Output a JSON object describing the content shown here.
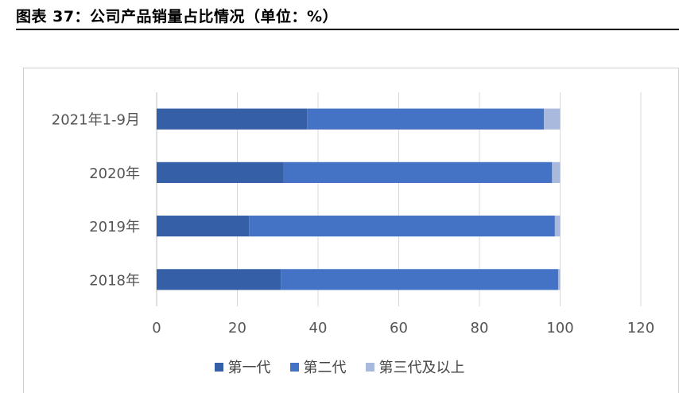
{
  "figure": {
    "title": "图表 37：公司产品销量占比情况（单位：%）"
  },
  "chart_data": {
    "type": "bar",
    "orientation": "horizontal",
    "stacked": true,
    "categories": [
      "2021年1-9月",
      "2020年",
      "2019年",
      "2018年"
    ],
    "series": [
      {
        "name": "第一代",
        "color": "#3560a8",
        "values": [
          37.3,
          31.5,
          22.9,
          30.8
        ]
      },
      {
        "name": "第二代",
        "color": "#4472c4",
        "values": [
          58.7,
          66.5,
          75.8,
          68.7
        ]
      },
      {
        "name": "第三代及以上",
        "color": "#a9b8dd",
        "values": [
          4.0,
          2.0,
          1.3,
          0.5
        ]
      }
    ],
    "xlim": [
      0,
      120
    ],
    "xticks": [
      "0",
      "20",
      "40",
      "60",
      "80",
      "100",
      "120"
    ],
    "grid": "vertical",
    "legend_position": "bottom"
  }
}
